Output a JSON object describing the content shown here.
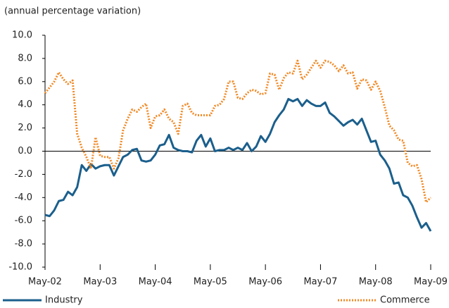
{
  "chart_data": {
    "type": "line",
    "y_label": "(annual percentage variation)",
    "categories": [
      "May-02",
      null,
      null,
      null,
      null,
      null,
      null,
      null,
      null,
      null,
      null,
      null,
      "May-03",
      null,
      null,
      null,
      null,
      null,
      null,
      null,
      null,
      null,
      null,
      null,
      "May-04",
      null,
      null,
      null,
      null,
      null,
      null,
      null,
      null,
      null,
      null,
      null,
      "May-05",
      null,
      null,
      null,
      null,
      null,
      null,
      null,
      null,
      null,
      null,
      null,
      "May-06",
      null,
      null,
      null,
      null,
      null,
      null,
      null,
      null,
      null,
      null,
      null,
      "May-07",
      null,
      null,
      null,
      null,
      null,
      null,
      null,
      null,
      null,
      null,
      null,
      "May-08",
      null,
      null,
      null,
      null,
      null,
      null,
      null,
      null,
      null,
      null,
      null,
      "May-09"
    ],
    "series": [
      {
        "name": "Industry",
        "color": "#1b5f8c",
        "style": "solid",
        "values": [
          -5.5,
          -5.6,
          -5.1,
          -4.3,
          -4.2,
          -3.5,
          -3.8,
          -3.1,
          -1.2,
          -1.7,
          -1.1,
          -1.5,
          -1.3,
          -1.2,
          -1.2,
          -2.1,
          -1.3,
          -0.5,
          -0.3,
          0.1,
          0.2,
          -0.8,
          -0.9,
          -0.8,
          -0.3,
          0.5,
          0.6,
          1.4,
          0.3,
          0.1,
          0.0,
          0.0,
          -0.1,
          0.9,
          1.4,
          0.4,
          1.1,
          0.0,
          0.1,
          0.1,
          0.3,
          0.1,
          0.3,
          0.1,
          0.7,
          0.0,
          0.4,
          1.3,
          0.8,
          1.5,
          2.5,
          3.1,
          3.6,
          4.5,
          4.3,
          4.5,
          3.9,
          4.4,
          4.1,
          3.9,
          3.9,
          4.2,
          3.3,
          3.0,
          2.6,
          2.2,
          2.5,
          2.7,
          2.3,
          2.8,
          1.8,
          0.8,
          0.9,
          -0.3,
          -0.8,
          -1.5,
          -2.8,
          -2.7,
          -3.8,
          -4.0,
          -4.7,
          -5.7,
          -6.6,
          -6.2,
          -6.9
        ]
      },
      {
        "name": "Commerce",
        "color": "#f28a26",
        "style": "dotted",
        "values": [
          5.0,
          5.5,
          6.0,
          6.8,
          6.2,
          5.8,
          6.1,
          1.5,
          0.3,
          -0.5,
          -1.5,
          1.2,
          -0.4,
          -0.5,
          -0.5,
          -1.5,
          -0.6,
          1.8,
          2.8,
          3.6,
          3.4,
          3.8,
          4.1,
          2.0,
          3.0,
          3.1,
          3.6,
          2.8,
          2.5,
          1.5,
          3.9,
          4.1,
          3.3,
          3.1,
          3.1,
          3.1,
          3.1,
          3.9,
          4.0,
          4.5,
          6.0,
          6.0,
          4.6,
          4.5,
          5.0,
          5.3,
          5.2,
          4.9,
          5.0,
          6.7,
          6.6,
          5.3,
          6.3,
          6.8,
          6.7,
          7.8,
          6.2,
          6.6,
          7.2,
          7.8,
          7.2,
          7.8,
          7.7,
          7.4,
          6.9,
          7.4,
          6.7,
          6.8,
          5.4,
          6.2,
          6.1,
          5.3,
          6.0,
          5.2,
          3.8,
          2.2,
          1.8,
          1.0,
          0.9,
          -1.0,
          -1.3,
          -1.2,
          -2.4,
          -4.4,
          -4.0
        ]
      }
    ],
    "ylim": [
      -10,
      10
    ],
    "yticks": [
      {
        "value": -10,
        "label": "-10.0"
      },
      {
        "value": -8,
        "label": "-8.0"
      },
      {
        "value": -6,
        "label": "-6.0"
      },
      {
        "value": -4,
        "label": "-4.0"
      },
      {
        "value": -2,
        "label": "-2.0"
      },
      {
        "value": 0,
        "label": "0.0"
      },
      {
        "value": 2,
        "label": "2.0"
      },
      {
        "value": 4,
        "label": "4.0"
      },
      {
        "value": 6,
        "label": "6.0"
      },
      {
        "value": 8,
        "label": "8.0"
      },
      {
        "value": 10,
        "label": "10.0"
      }
    ],
    "grid": false,
    "legend": "bottom"
  }
}
